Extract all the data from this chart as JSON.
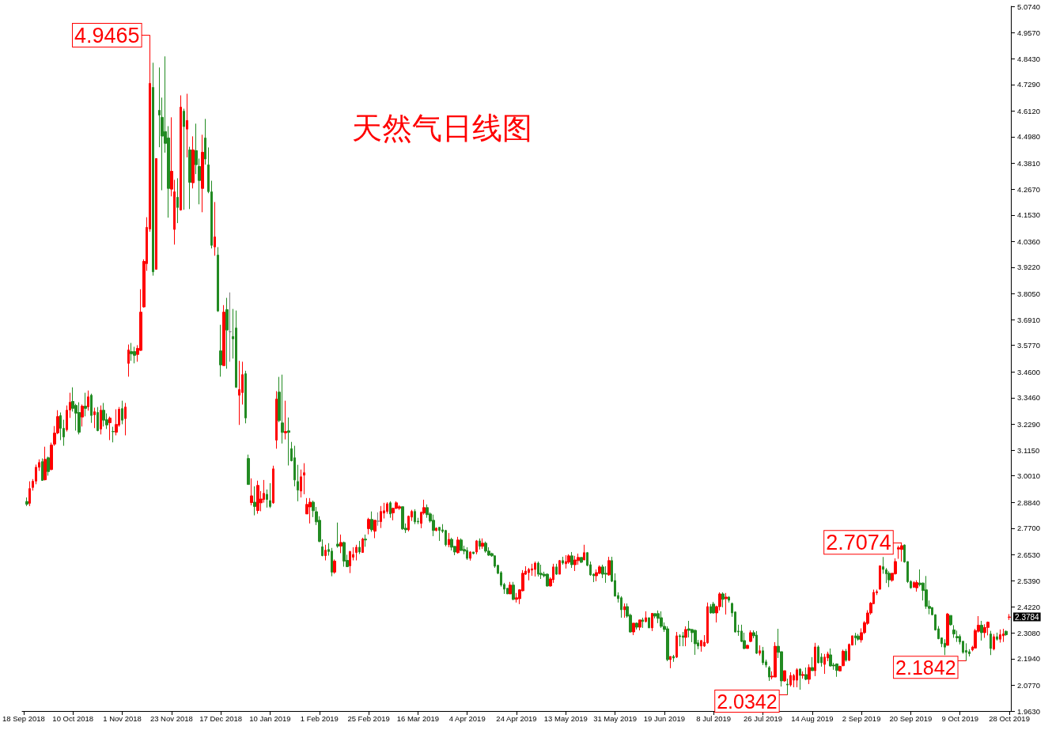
{
  "chart_data": {
    "type": "candlestick",
    "title": "天然气日线图",
    "categories": [
      "18 Sep 2018",
      null,
      null,
      null,
      null,
      null,
      null,
      null,
      null,
      null,
      null,
      null,
      null,
      null,
      null,
      null,
      "10 Oct 2018",
      null,
      null,
      null,
      null,
      null,
      null,
      null,
      null,
      null,
      null,
      null,
      null,
      null,
      null,
      null,
      "1 Nov 2018",
      null,
      null,
      null,
      null,
      null,
      null,
      null,
      null,
      null,
      null,
      null,
      null,
      null,
      null,
      null,
      "23 Nov 2018",
      null,
      null,
      null,
      null,
      null,
      null,
      null,
      null,
      null,
      null,
      null,
      null,
      null,
      null,
      null,
      "17 Dec 2018",
      null,
      null,
      null,
      null,
      null,
      null,
      null,
      null,
      null,
      null,
      null,
      null,
      null,
      null,
      null,
      "10 Jan 2019",
      null,
      null,
      null,
      null,
      null,
      null,
      null,
      null,
      null,
      null,
      null,
      null,
      null,
      null,
      null,
      "1 Feb 2019",
      null,
      null,
      null,
      null,
      null,
      null,
      null,
      null,
      null,
      null,
      null,
      null,
      null,
      null,
      null,
      "25 Feb 2019",
      null,
      null,
      null,
      null,
      null,
      null,
      null,
      null,
      null,
      null,
      null,
      null,
      null,
      null,
      null,
      "16 Mar 2019",
      null,
      null,
      null,
      null,
      null,
      null,
      null,
      null,
      null,
      null,
      null,
      null,
      null,
      null,
      null,
      "4 Apr 2019",
      null,
      null,
      null,
      null,
      null,
      null,
      null,
      null,
      null,
      null,
      null,
      null,
      null,
      null,
      null,
      "24 Apr 2019",
      null,
      null,
      null,
      null,
      null,
      null,
      null,
      null,
      null,
      null,
      null,
      null,
      null,
      null,
      null,
      "13 May 2019",
      null,
      null,
      null,
      null,
      null,
      null,
      null,
      null,
      null,
      null,
      null,
      null,
      null,
      null,
      null,
      "31 May 2019",
      null,
      null,
      null,
      null,
      null,
      null,
      null,
      null,
      null,
      null,
      null,
      null,
      null,
      null,
      null,
      "19 Jun 2019",
      null,
      null,
      null,
      null,
      null,
      null,
      null,
      null,
      null,
      null,
      null,
      null,
      null,
      null,
      null,
      "8 Jul 2019",
      null,
      null,
      null,
      null,
      null,
      null,
      null,
      null,
      null,
      null,
      null,
      null,
      null,
      null,
      null,
      "26 Jul 2019",
      null,
      null,
      null,
      null,
      null,
      null,
      null,
      null,
      null,
      null,
      null,
      null,
      null,
      null,
      null,
      "14 Aug 2019",
      null,
      null,
      null,
      null,
      null,
      null,
      null,
      null,
      null,
      null,
      null,
      null,
      null,
      null,
      null,
      "2 Sep 2019",
      null,
      null,
      null,
      null,
      null,
      null,
      null,
      null,
      null,
      null,
      null,
      null,
      null,
      null,
      null,
      "20 Sep 2019",
      null,
      null,
      null,
      null,
      null,
      null,
      null,
      null,
      null,
      null,
      null,
      null,
      null,
      null,
      null,
      "9 Oct 2019",
      null,
      null,
      null,
      null,
      null,
      null,
      null,
      null,
      null,
      null,
      null,
      null,
      null,
      null,
      null,
      "28 Oct 2019"
    ],
    "colors": [
      null,
      "#228b22",
      "#ff0000",
      "#ff0000",
      "#ff0000",
      "#ff0000",
      "#228b22",
      "#ff0000",
      "#228b22",
      "#ff0000",
      "#ff0000",
      "#ff0000",
      "#228b22",
      "#228b22",
      "#ff0000",
      "#ff0000",
      "#228b22",
      "#228b22",
      "#228b22",
      "#ff0000",
      "#228b22",
      "#ff0000",
      "#228b22",
      "#ff0000",
      "#228b22",
      "#ff0000",
      "#228b22",
      "#228b22",
      "#ff0000",
      "#228b22",
      "#ff0000",
      "#ff0000",
      "#228b22",
      "#ff0000",
      "#ff0000",
      "#228b22",
      "#228b22",
      "#ff0000",
      "#ff0000",
      "#ff0000",
      "#ff0000",
      "#ff0000",
      "#228b22",
      "#ff0000",
      "#228b22",
      "#228b22",
      "#228b22",
      "#228b22",
      "#ff0000",
      "#ff0000",
      "#228b22",
      "#ff0000",
      "#228b22",
      "#ff0000",
      "#228b22",
      "#ff0000",
      "#228b22",
      "#228b22",
      "#ff0000",
      "#228b22",
      "#228b22",
      "#228b22",
      "#ff0000",
      "#228b22",
      "#228b22",
      "#ff0000",
      "#228b22",
      "#808080",
      "#228b22",
      "#228b22",
      "#ff0000",
      "#ff0000",
      "#228b22",
      "#228b22",
      "#ff0000",
      "#228b22",
      "#ff0000",
      "#ff0000",
      "#ff0000",
      "#228b22",
      "#228b22",
      "#ff0000",
      "#ff0000",
      "#228b22",
      "#228b22",
      "#ff0000",
      "#228b22",
      "#228b22",
      "#228b22",
      "#228b22",
      "#ff0000",
      "#ff0000",
      "#ff0000",
      "#ff0000",
      "#228b22",
      "#228b22",
      "#228b22",
      "#228b22",
      "#ff0000",
      "#228b22",
      "#228b22",
      "#ff0000",
      "#228b22",
      "#ff0000",
      "#228b22",
      "#228b22",
      "#ff0000",
      "#ff0000",
      "#ff0000",
      "#228b22",
      "#ff0000",
      "#228b22",
      "#ff0000",
      "#228b22",
      "#ff0000",
      "#808080",
      "#ff0000",
      "#ff0000",
      "#ff0000",
      "#228b22",
      "#ff0000",
      "#ff0000",
      "#ff0000",
      "#228b22",
      "#228b22",
      "#ff0000",
      "#ff0000",
      "#228b22",
      "#228b22",
      "#ff0000",
      "#ff0000",
      "#228b22",
      "#228b22",
      "#228b22",
      "#ff0000",
      "#228b22",
      "#228b22",
      "#228b22",
      "#ff0000",
      "#228b22",
      "#228b22",
      "#ff0000",
      "#228b22",
      "#228b22",
      "#228b22",
      "#ff0000",
      "#228b22",
      "#ff0000",
      "#228b22",
      "#ff0000",
      "#228b22",
      "#228b22",
      "#228b22",
      "#228b22",
      "#228b22",
      "#228b22",
      "#228b22",
      "#228b22",
      "#ff0000",
      "#228b22",
      "#ff0000",
      "#ff0000",
      "#ff0000",
      "#ff0000",
      "#ff0000",
      "#ff0000",
      "#ff0000",
      "#228b22",
      "#228b22",
      "#228b22",
      "#228b22",
      "#ff0000",
      "#ff0000",
      "#228b22",
      "#ff0000",
      "#228b22",
      "#ff0000",
      "#ff0000",
      "#228b22",
      "#ff0000",
      "#ff0000",
      "#228b22",
      "#ff0000",
      "#228b22",
      "#228b22",
      "#228b22",
      "#ff0000",
      "#ff0000",
      "#228b22",
      "#228b22",
      "#ff0000",
      "#228b22",
      "#228b22",
      "#228b22",
      "#228b22",
      "#ff0000",
      "#228b22",
      "#228b22",
      "#ff0000",
      "#228b22",
      "#ff0000",
      "#228b22",
      "#ff0000",
      "#228b22",
      "#ff0000",
      "#228b22",
      "#228b22",
      "#228b22",
      "#228b22",
      "#228b22",
      "#ff0000",
      "#228b22",
      "#ff0000",
      "#228b22",
      "#228b22",
      "#ff0000",
      "#228b22",
      "#228b22",
      "#228b22",
      "#228b22",
      "#ff0000",
      "#ff0000",
      "#ff0000",
      "#228b22",
      "#228b22",
      "#ff0000",
      "#ff0000",
      "#228b22",
      "#ff0000",
      "#228b22",
      "#228b22",
      "#228b22",
      "#228b22",
      "#228b22",
      "#228b22",
      "#ff0000",
      "#ff0000",
      "#228b22",
      "#228b22",
      "#ff0000",
      "#228b22",
      "#228b22",
      "#228b22",
      "#ff0000",
      "#ff0000",
      "#228b22",
      "#228b22",
      "#ff0000",
      "#228b22",
      "#ff0000",
      "#ff0000",
      "#ff0000",
      "#228b22",
      "#ff0000",
      "#228b22",
      "#ff0000",
      "#228b22",
      "#ff0000",
      "#228b22",
      "#228b22",
      "#ff0000",
      "#ff0000",
      "#228b22",
      "#228b22",
      "#228b22",
      "#ff0000",
      "#ff0000",
      "#228b22",
      "#ff0000",
      "#ff0000",
      "#228b22",
      "#228b22",
      "#ff0000",
      "#ff0000",
      "#ff0000",
      "#ff0000",
      "#ff0000",
      "#ff0000",
      "#ff0000",
      "#228b22",
      "#228b22",
      "#228b22",
      "#ff0000",
      "#ff0000",
      "#ff0000",
      "#ff0000",
      "#228b22",
      "#228b22",
      "#228b22",
      "#ff0000",
      "#ff0000",
      "#228b22",
      "#228b22",
      "#228b22",
      "#228b22",
      "#228b22",
      "#228b22",
      "#228b22",
      "#228b22",
      "#228b22",
      "#ff0000",
      "#228b22",
      "#228b22",
      "#228b22",
      "#228b22",
      "#228b22",
      "#228b22",
      "#228b22",
      "#ff0000",
      "#ff0000",
      "#ff0000",
      "#228b22",
      "#ff0000",
      "#ff0000",
      "#228b22",
      "#ff0000",
      "#228b22",
      "#ff0000",
      "#ff0000",
      "#228b22",
      "#ff0000"
    ],
    "ohlc": [
      null,
      [
        2.888,
        2.906,
        2.868,
        2.876
      ],
      [
        2.88,
        2.977,
        2.868,
        2.945
      ],
      [
        2.95,
        2.987,
        2.936,
        2.977
      ],
      [
        2.978,
        3.051,
        2.964,
        3.039
      ],
      [
        3.039,
        3.074,
        3.023,
        3.06
      ],
      [
        3.064,
        3.078,
        2.981,
        2.981
      ],
      [
        2.984,
        3.13,
        2.981,
        3.074
      ],
      [
        3.081,
        3.086,
        3.002,
        3.02
      ],
      [
        3.029,
        3.148,
        3.026,
        3.137
      ],
      [
        3.141,
        3.221,
        3.134,
        3.19
      ],
      [
        3.191,
        3.291,
        3.185,
        3.263
      ],
      [
        3.267,
        3.281,
        3.159,
        3.211
      ],
      [
        3.211,
        3.249,
        3.134,
        3.173
      ],
      [
        3.205,
        3.312,
        3.197,
        3.291
      ],
      [
        3.292,
        3.368,
        3.257,
        3.326
      ],
      [
        3.33,
        3.392,
        3.285,
        3.299
      ],
      [
        3.312,
        3.319,
        3.201,
        3.278
      ],
      [
        3.281,
        3.326,
        3.184,
        3.194
      ],
      [
        3.261,
        3.316,
        3.219,
        3.309
      ],
      [
        3.309,
        3.368,
        3.264,
        3.299
      ],
      [
        3.306,
        3.378,
        3.289,
        3.35
      ],
      [
        3.357,
        3.364,
        3.235,
        3.268
      ],
      [
        3.271,
        3.302,
        3.212,
        3.284
      ],
      [
        3.281,
        3.305,
        3.198,
        3.201
      ],
      [
        3.208,
        3.312,
        3.184,
        3.291
      ],
      [
        3.291,
        3.323,
        3.219,
        3.247
      ],
      [
        3.249,
        3.277,
        3.208,
        3.226
      ],
      [
        3.236,
        3.263,
        3.159,
        3.256
      ],
      [
        3.197,
        3.218,
        3.149,
        3.196
      ],
      [
        3.194,
        3.295,
        3.18,
        3.228
      ],
      [
        3.225,
        3.305,
        3.218,
        3.295
      ],
      [
        3.298,
        3.333,
        3.229,
        3.247
      ],
      [
        3.254,
        3.323,
        3.18,
        3.305
      ],
      [
        3.498,
        3.581,
        3.439,
        3.557
      ],
      [
        3.55,
        3.588,
        3.509,
        3.54
      ],
      [
        3.55,
        3.571,
        3.498,
        3.533
      ],
      [
        3.537,
        3.578,
        3.505,
        3.564
      ],
      [
        3.555,
        3.825,
        3.553,
        3.724
      ],
      [
        3.747,
        3.957,
        3.744,
        3.948
      ],
      [
        3.938,
        4.143,
        3.906,
        4.098
      ],
      [
        4.091,
        4.9465,
        4.079,
        4.734
      ],
      [
        4.716,
        4.825,
        3.885,
        3.902
      ],
      [
        3.913,
        4.402,
        3.913,
        4.402
      ],
      [
        4.615,
        4.804,
        4.452,
        4.594
      ],
      [
        4.584,
        4.671,
        4.262,
        4.501
      ],
      [
        4.521,
        4.853,
        4.428,
        4.469
      ],
      [
        4.493,
        4.545,
        4.141,
        4.27
      ],
      [
        4.267,
        4.584,
        4.235,
        4.346
      ],
      [
        4.089,
        4.308,
        4.022,
        4.255
      ],
      [
        4.231,
        4.315,
        4.117,
        4.186
      ],
      [
        4.175,
        4.681,
        4.172,
        4.629
      ],
      [
        4.611,
        4.622,
        4.176,
        4.543
      ],
      [
        4.532,
        4.688,
        4.407,
        4.57
      ],
      [
        4.44,
        4.454,
        4.179,
        4.297
      ],
      [
        4.295,
        4.5,
        4.27,
        4.44
      ],
      [
        4.437,
        4.556,
        4.333,
        4.375
      ],
      [
        4.367,
        4.402,
        4.2,
        4.305
      ],
      [
        4.27,
        4.507,
        4.165,
        4.43
      ],
      [
        4.493,
        4.577,
        4.375,
        4.4
      ],
      [
        4.374,
        4.451,
        4.249,
        4.256
      ],
      [
        4.255,
        4.304,
        4.005,
        4.019
      ],
      [
        4.012,
        4.21,
        3.973,
        4.056
      ],
      [
        3.976,
        4.011,
        3.725,
        3.729
      ],
      [
        3.553,
        3.668,
        3.439,
        3.491
      ],
      [
        3.488,
        3.755,
        3.488,
        3.724
      ],
      [
        3.735,
        3.787,
        3.474,
        3.645
      ],
      [
        3.637,
        3.811,
        3.505,
        3.637
      ],
      [
        3.616,
        3.738,
        3.519,
        3.606
      ],
      [
        3.654,
        3.731,
        3.39,
        3.392
      ],
      [
        3.357,
        3.509,
        3.226,
        3.382
      ],
      [
        3.369,
        3.505,
        3.316,
        3.448
      ],
      [
        3.452,
        3.465,
        3.233,
        3.257
      ],
      [
        3.078,
        3.095,
        2.963,
        2.963
      ],
      [
        2.883,
        2.99,
        2.871,
        2.913
      ],
      [
        2.885,
        2.955,
        2.827,
        2.866
      ],
      [
        2.848,
        2.98,
        2.834,
        2.959
      ],
      [
        2.882,
        2.934,
        2.845,
        2.899
      ],
      [
        2.897,
        2.983,
        2.883,
        2.924
      ],
      [
        2.92,
        2.941,
        2.861,
        2.897
      ],
      [
        2.892,
        2.969,
        2.859,
        2.866
      ],
      [
        2.882,
        3.046,
        2.878,
        3.032
      ],
      [
        3.159,
        3.375,
        3.121,
        3.34
      ],
      [
        3.371,
        3.438,
        3.238,
        3.245
      ],
      [
        3.235,
        3.448,
        3.144,
        3.193
      ],
      [
        3.191,
        3.333,
        3.162,
        3.197
      ],
      [
        3.2,
        3.259,
        3.047,
        3.193
      ],
      [
        3.121,
        3.151,
        3.065,
        3.068
      ],
      [
        3.081,
        3.134,
        2.955,
        2.983
      ],
      [
        2.976,
        3.05,
        2.889,
        2.938
      ],
      [
        2.934,
        3.029,
        2.906,
        2.997
      ],
      [
        3.004,
        3.057,
        2.92,
        3.015
      ],
      [
        2.833,
        2.903,
        2.833,
        2.875
      ],
      [
        2.864,
        2.903,
        2.791,
        2.885
      ],
      [
        2.885,
        2.892,
        2.819,
        2.847
      ],
      [
        2.843,
        2.864,
        2.784,
        2.798
      ],
      [
        2.805,
        2.823,
        2.708,
        2.712
      ],
      [
        2.688,
        2.721,
        2.646,
        2.649
      ],
      [
        2.649,
        2.697,
        2.628,
        2.673
      ],
      [
        2.676,
        2.704,
        2.649,
        2.667
      ],
      [
        2.669,
        2.683,
        2.558,
        2.576
      ],
      [
        2.576,
        2.632,
        2.569,
        2.625
      ],
      [
        2.7,
        2.795,
        2.684,
        2.691
      ],
      [
        2.691,
        2.742,
        2.66,
        2.707
      ],
      [
        2.707,
        2.711,
        2.6,
        2.625
      ],
      [
        2.628,
        2.653,
        2.6,
        2.6
      ],
      [
        2.604,
        2.67,
        2.572,
        2.667
      ],
      [
        2.642,
        2.686,
        2.628,
        2.654
      ],
      [
        2.663,
        2.697,
        2.628,
        2.686
      ],
      [
        2.686,
        2.714,
        2.656,
        2.665
      ],
      [
        2.663,
        2.728,
        2.663,
        2.722
      ],
      [
        2.722,
        2.742,
        2.688,
        2.718
      ],
      [
        2.768,
        2.816,
        2.743,
        2.809
      ],
      [
        2.809,
        2.844,
        2.754,
        2.763
      ],
      [
        2.757,
        2.805,
        2.726,
        2.805
      ],
      [
        2.801,
        2.84,
        2.781,
        2.801
      ],
      [
        2.799,
        2.868,
        2.771,
        2.844
      ],
      [
        2.837,
        2.882,
        2.813,
        2.847
      ],
      [
        2.844,
        2.885,
        2.834,
        2.878
      ],
      [
        2.882,
        2.889,
        2.816,
        2.833
      ],
      [
        2.838,
        2.861,
        2.805,
        2.858
      ],
      [
        2.858,
        2.889,
        2.854,
        2.882
      ],
      [
        2.858,
        2.872,
        2.851,
        2.865
      ],
      [
        2.865,
        2.865,
        2.763,
        2.767
      ],
      [
        2.77,
        2.791,
        2.749,
        2.763
      ],
      [
        2.763,
        2.826,
        2.756,
        2.823
      ],
      [
        2.819,
        2.851,
        2.802,
        2.844
      ],
      [
        2.844,
        2.854,
        2.788,
        2.798
      ],
      [
        2.801,
        2.816,
        2.788,
        2.798
      ],
      [
        2.791,
        2.844,
        2.77,
        2.84
      ],
      [
        2.837,
        2.896,
        2.83,
        2.861
      ],
      [
        2.861,
        2.875,
        2.816,
        2.83
      ],
      [
        2.833,
        2.84,
        2.795,
        2.802
      ],
      [
        2.805,
        2.83,
        2.735,
        2.76
      ],
      [
        2.76,
        2.774,
        2.756,
        2.77
      ],
      [
        2.774,
        2.774,
        2.714,
        2.76
      ],
      [
        2.763,
        2.788,
        2.749,
        2.756
      ],
      [
        2.76,
        2.763,
        2.69,
        2.697
      ],
      [
        2.697,
        2.749,
        2.686,
        2.721
      ],
      [
        2.721,
        2.728,
        2.672,
        2.686
      ],
      [
        2.69,
        2.69,
        2.651,
        2.665
      ],
      [
        2.662,
        2.732,
        2.658,
        2.718
      ],
      [
        2.718,
        2.725,
        2.669,
        2.672
      ],
      [
        2.676,
        2.693,
        2.655,
        2.669
      ],
      [
        2.672,
        2.686,
        2.63,
        2.637
      ],
      [
        2.637,
        2.669,
        2.627,
        2.665
      ],
      [
        2.665,
        2.665,
        2.655,
        2.658
      ],
      [
        2.665,
        2.718,
        2.655,
        2.714
      ],
      [
        2.714,
        2.725,
        2.676,
        2.69
      ],
      [
        2.69,
        2.725,
        2.679,
        2.704
      ],
      [
        2.704,
        2.711,
        2.662,
        2.669
      ],
      [
        2.669,
        2.686,
        2.648,
        2.651
      ],
      [
        2.658,
        2.662,
        2.644,
        2.648
      ],
      [
        2.648,
        2.651,
        2.595,
        2.602
      ],
      [
        2.606,
        2.609,
        2.567,
        2.571
      ],
      [
        2.574,
        2.581,
        2.512,
        2.519
      ],
      [
        2.522,
        2.529,
        2.48,
        2.501
      ],
      [
        2.505,
        2.505,
        2.48,
        2.48
      ],
      [
        2.48,
        2.533,
        2.48,
        2.519
      ],
      [
        2.519,
        2.533,
        2.452,
        2.456
      ],
      [
        2.456,
        2.484,
        2.442,
        2.463
      ],
      [
        2.459,
        2.501,
        2.435,
        2.498
      ],
      [
        2.494,
        2.585,
        2.491,
        2.571
      ],
      [
        2.567,
        2.602,
        2.564,
        2.581
      ],
      [
        2.574,
        2.595,
        2.54,
        2.588
      ],
      [
        2.585,
        2.613,
        2.56,
        2.591
      ],
      [
        2.588,
        2.623,
        2.557,
        2.616
      ],
      [
        2.616,
        2.623,
        2.557,
        2.567
      ],
      [
        2.571,
        2.609,
        2.546,
        2.564
      ],
      [
        2.567,
        2.578,
        2.553,
        2.56
      ],
      [
        2.567,
        2.571,
        2.512,
        2.515
      ],
      [
        2.515,
        2.553,
        2.512,
        2.546
      ],
      [
        2.543,
        2.613,
        2.529,
        2.599
      ],
      [
        2.599,
        2.613,
        2.564,
        2.567
      ],
      [
        2.567,
        2.63,
        2.567,
        2.627
      ],
      [
        2.627,
        2.644,
        2.609,
        2.616
      ],
      [
        2.613,
        2.651,
        2.592,
        2.623
      ],
      [
        2.62,
        2.655,
        2.613,
        2.648
      ],
      [
        2.648,
        2.665,
        2.595,
        2.609
      ],
      [
        2.609,
        2.648,
        2.581,
        2.63
      ],
      [
        2.627,
        2.658,
        2.609,
        2.641
      ],
      [
        2.641,
        2.641,
        2.616,
        2.62
      ],
      [
        2.63,
        2.697,
        2.63,
        2.662
      ],
      [
        2.662,
        2.665,
        2.602,
        2.606
      ],
      [
        2.609,
        2.623,
        2.56,
        2.564
      ],
      [
        2.567,
        2.571,
        2.532,
        2.56
      ],
      [
        2.56,
        2.588,
        2.536,
        2.574
      ],
      [
        2.571,
        2.606,
        2.567,
        2.599
      ],
      [
        2.599,
        2.609,
        2.55,
        2.567
      ],
      [
        2.571,
        2.602,
        2.529,
        2.567
      ],
      [
        2.564,
        2.644,
        2.56,
        2.627
      ],
      [
        2.627,
        2.644,
        2.532,
        2.536
      ],
      [
        2.539,
        2.571,
        2.47,
        2.47
      ],
      [
        2.473,
        2.487,
        2.442,
        2.459
      ],
      [
        2.463,
        2.47,
        2.375,
        2.41
      ],
      [
        2.41,
        2.438,
        2.375,
        2.424
      ],
      [
        2.424,
        2.438,
        2.375,
        2.382
      ],
      [
        2.386,
        2.393,
        2.309,
        2.312
      ],
      [
        2.312,
        2.351,
        2.298,
        2.351
      ],
      [
        2.351,
        2.354,
        2.323,
        2.333
      ],
      [
        2.333,
        2.365,
        2.319,
        2.365
      ],
      [
        2.365,
        2.375,
        2.33,
        2.358
      ],
      [
        2.358,
        2.403,
        2.354,
        2.375
      ],
      [
        2.375,
        2.375,
        2.33,
        2.33
      ],
      [
        2.33,
        2.396,
        2.316,
        2.394
      ],
      [
        2.393,
        2.393,
        2.372,
        2.382
      ],
      [
        2.393,
        2.407,
        2.351,
        2.372
      ],
      [
        2.375,
        2.403,
        2.33,
        2.337
      ],
      [
        2.337,
        2.354,
        2.312,
        2.323
      ],
      [
        2.326,
        2.337,
        2.183,
        2.19
      ],
      [
        2.19,
        2.204,
        2.152,
        2.204
      ],
      [
        2.204,
        2.211,
        2.18,
        2.197
      ],
      [
        2.201,
        2.312,
        2.197,
        2.295
      ],
      [
        2.295,
        2.302,
        2.249,
        2.291
      ],
      [
        2.295,
        2.312,
        2.249,
        2.288
      ],
      [
        2.288,
        2.337,
        2.249,
        2.323
      ],
      [
        2.326,
        2.361,
        2.288,
        2.319
      ],
      [
        2.323,
        2.326,
        2.267,
        2.309
      ],
      [
        2.319,
        2.323,
        2.211,
        2.26
      ],
      [
        2.264,
        2.277,
        2.236,
        2.25
      ],
      [
        2.25,
        2.277,
        2.225,
        2.274
      ],
      [
        2.25,
        2.298,
        2.246,
        2.267
      ],
      [
        2.264,
        2.442,
        2.26,
        2.424
      ],
      [
        2.424,
        2.435,
        2.393,
        2.396
      ],
      [
        2.435,
        2.445,
        2.393,
        2.396
      ],
      [
        2.396,
        2.428,
        2.354,
        2.424
      ],
      [
        2.424,
        2.487,
        2.407,
        2.48
      ],
      [
        2.48,
        2.487,
        2.421,
        2.456
      ],
      [
        2.459,
        2.484,
        2.389,
        2.466
      ],
      [
        2.466,
        2.47,
        2.442,
        2.452
      ],
      [
        2.438,
        2.442,
        2.379,
        2.396
      ],
      [
        2.4,
        2.403,
        2.309,
        2.312
      ],
      [
        2.316,
        2.344,
        2.295,
        2.312
      ],
      [
        2.316,
        2.344,
        2.267,
        2.27
      ],
      [
        2.274,
        2.309,
        2.236,
        2.239
      ],
      [
        2.239,
        2.256,
        2.239,
        2.253
      ],
      [
        2.27,
        2.319,
        2.267,
        2.309
      ],
      [
        2.309,
        2.319,
        2.284,
        2.295
      ],
      [
        2.298,
        2.316,
        2.215,
        2.218
      ],
      [
        2.218,
        2.253,
        2.208,
        2.229
      ],
      [
        2.229,
        2.246,
        2.166,
        2.176
      ],
      [
        2.18,
        2.19,
        2.155,
        2.166
      ],
      [
        2.155,
        2.162,
        2.096,
        2.113
      ],
      [
        2.113,
        2.138,
        2.103,
        2.117
      ],
      [
        2.113,
        2.267,
        2.113,
        2.249
      ],
      [
        2.249,
        2.326,
        2.197,
        2.222
      ],
      [
        2.225,
        2.225,
        2.071,
        2.096
      ],
      [
        2.096,
        2.141,
        2.092,
        2.141
      ],
      [
        2.082,
        2.106,
        2.0342,
        2.078
      ],
      [
        2.078,
        2.134,
        2.071,
        2.12
      ],
      [
        2.099,
        2.127,
        2.068,
        2.12
      ],
      [
        2.099,
        2.152,
        2.068,
        2.145
      ],
      [
        2.148,
        2.152,
        2.057,
        2.12
      ],
      [
        2.12,
        2.138,
        2.106,
        2.124
      ],
      [
        2.124,
        2.155,
        2.099,
        2.103
      ],
      [
        2.103,
        2.169,
        2.082,
        2.155
      ],
      [
        2.155,
        2.201,
        2.141,
        2.141
      ],
      [
        2.141,
        2.264,
        2.117,
        2.246
      ],
      [
        2.246,
        2.253,
        2.173,
        2.176
      ],
      [
        2.201,
        2.218,
        2.159,
        2.176
      ],
      [
        2.169,
        2.215,
        2.127,
        2.201
      ],
      [
        2.197,
        2.225,
        2.183,
        2.215
      ],
      [
        2.211,
        2.239,
        2.159,
        2.162
      ],
      [
        2.166,
        2.176,
        2.145,
        2.162
      ],
      [
        2.171,
        2.173,
        2.114,
        2.142
      ],
      [
        2.14,
        2.163,
        2.138,
        2.16
      ],
      [
        2.163,
        2.234,
        2.161,
        2.227
      ],
      [
        2.227,
        2.237,
        2.181,
        2.187
      ],
      [
        2.187,
        2.261,
        2.183,
        2.257
      ],
      [
        2.254,
        2.295,
        2.254,
        2.295
      ],
      [
        2.295,
        2.308,
        2.254,
        2.286
      ],
      [
        2.294,
        2.303,
        2.274,
        2.28
      ],
      [
        2.277,
        2.328,
        2.265,
        2.309
      ],
      [
        2.309,
        2.36,
        2.303,
        2.353
      ],
      [
        2.35,
        2.408,
        2.343,
        2.396
      ],
      [
        2.396,
        2.444,
        2.388,
        2.439
      ],
      [
        2.437,
        2.499,
        2.434,
        2.487
      ],
      [
        2.485,
        2.499,
        2.475,
        2.49
      ],
      [
        2.501,
        2.606,
        2.499,
        2.604
      ],
      [
        2.6,
        2.643,
        2.569,
        2.588
      ],
      [
        2.586,
        2.594,
        2.528,
        2.569
      ],
      [
        2.571,
        2.58,
        2.51,
        2.542
      ],
      [
        2.54,
        2.571,
        2.534,
        2.571
      ],
      [
        2.569,
        2.637,
        2.565,
        2.623
      ],
      [
        2.678,
        2.693,
        2.635,
        2.684
      ],
      [
        2.676,
        2.7074,
        2.623,
        2.693
      ],
      [
        2.696,
        2.698,
        2.618,
        2.621
      ],
      [
        2.623,
        2.623,
        2.528,
        2.534
      ],
      [
        2.535,
        2.54,
        2.503,
        2.507
      ],
      [
        2.509,
        2.536,
        2.507,
        2.53
      ],
      [
        2.507,
        2.54,
        2.49,
        2.53
      ],
      [
        2.528,
        2.588,
        2.513,
        2.521
      ],
      [
        2.528,
        2.53,
        2.451,
        2.495
      ],
      [
        2.498,
        2.559,
        2.414,
        2.425
      ],
      [
        2.425,
        2.451,
        2.39,
        2.416
      ],
      [
        2.42,
        2.42,
        2.385,
        2.388
      ],
      [
        2.388,
        2.39,
        2.318,
        2.321
      ],
      [
        2.326,
        2.338,
        2.28,
        2.282
      ],
      [
        2.286,
        2.286,
        2.245,
        2.26
      ],
      [
        2.262,
        2.28,
        2.21,
        2.245
      ],
      [
        2.253,
        2.396,
        2.253,
        2.391
      ],
      [
        2.385,
        2.385,
        2.34,
        2.344
      ],
      [
        2.321,
        2.342,
        2.286,
        2.303
      ],
      [
        2.292,
        2.318,
        2.268,
        2.286
      ],
      [
        2.292,
        2.301,
        2.257,
        2.268
      ],
      [
        2.271,
        2.271,
        2.216,
        2.222
      ],
      [
        2.23,
        2.262,
        2.1842,
        2.222
      ],
      [
        2.225,
        2.236,
        2.204,
        2.216
      ],
      [
        2.233,
        2.251,
        2.227,
        2.245
      ],
      [
        2.241,
        2.326,
        2.239,
        2.318
      ],
      [
        2.315,
        2.382,
        2.309,
        2.342
      ],
      [
        2.342,
        2.361,
        2.274,
        2.309
      ],
      [
        2.309,
        2.346,
        2.286,
        2.332
      ],
      [
        2.332,
        2.358,
        2.297,
        2.355
      ],
      [
        2.303,
        2.317,
        2.21,
        2.239
      ],
      [
        2.237,
        2.303,
        2.231,
        2.291
      ],
      [
        2.291,
        2.309,
        2.274,
        2.28
      ],
      [
        2.28,
        2.323,
        2.265,
        2.3
      ],
      [
        2.295,
        2.326,
        2.268,
        2.303
      ],
      [
        2.315,
        2.318,
        2.295,
        2.3
      ],
      [
        2.3765,
        2.391,
        2.365,
        2.3784
      ]
    ],
    "ylim": [
      1.963,
      5.074
    ],
    "yticks": [
      {
        "value": 1.963,
        "label": "1.9630"
      },
      {
        "value": 2.077,
        "label": "2.0770"
      },
      {
        "value": 2.194,
        "label": "2.1940"
      },
      {
        "value": 2.308,
        "label": "2.3080"
      },
      {
        "value": 2.422,
        "label": "2.4220"
      },
      {
        "value": 2.539,
        "label": "2.5390"
      },
      {
        "value": 2.653,
        "label": "2.6530"
      },
      {
        "value": 2.77,
        "label": "2.7700"
      },
      {
        "value": 2.884,
        "label": "2.8840"
      },
      {
        "value": 3.001,
        "label": "3.0010"
      },
      {
        "value": 3.115,
        "label": "3.1150"
      },
      {
        "value": 3.229,
        "label": "3.2290"
      },
      {
        "value": 3.346,
        "label": "3.3460"
      },
      {
        "value": 3.46,
        "label": "3.4600"
      },
      {
        "value": 3.577,
        "label": "3.5770"
      },
      {
        "value": 3.691,
        "label": "3.6910"
      },
      {
        "value": 3.805,
        "label": "3.8050"
      },
      {
        "value": 3.922,
        "label": "3.9220"
      },
      {
        "value": 4.036,
        "label": "4.0360"
      },
      {
        "value": 4.153,
        "label": "4.1530"
      },
      {
        "value": 4.267,
        "label": "4.2670"
      },
      {
        "value": 4.381,
        "label": "4.3810"
      },
      {
        "value": 4.498,
        "label": "4.4980"
      },
      {
        "value": 4.612,
        "label": "4.6120"
      },
      {
        "value": 4.729,
        "label": "4.7290"
      },
      {
        "value": 4.843,
        "label": "4.8430"
      },
      {
        "value": 4.957,
        "label": "4.9570"
      },
      {
        "value": 5.074,
        "label": "5.0740"
      }
    ],
    "annotations": [
      "4.9465",
      "2.7074",
      "2.0342",
      "2.1842",
      "2.3784"
    ]
  }
}
